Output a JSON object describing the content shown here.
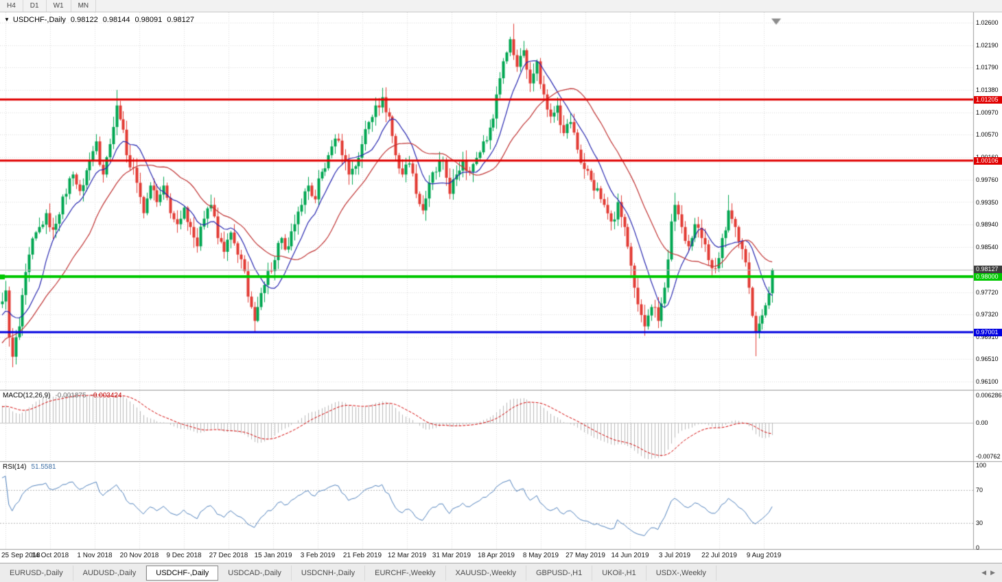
{
  "toolbar": {
    "timeframes": [
      "H4",
      "D1",
      "W1",
      "MN"
    ]
  },
  "chart_data": {
    "type": "candlestick",
    "symbol": "USDCHF-",
    "period": "Daily",
    "title": {
      "dropdown_icon": "▼",
      "symbol": "USDCHF-,Daily",
      "open": "0.98122",
      "high": "0.98144",
      "low": "0.98091",
      "close": "0.98127"
    },
    "price_axis": {
      "min": 0.961,
      "max": 1.026,
      "labels": [
        "1.02600",
        "1.02190",
        "1.01790",
        "1.01380",
        "1.00970",
        "1.00570",
        "1.00160",
        "0.99760",
        "0.99350",
        "0.98940",
        "0.98540",
        "0.98130",
        "0.97720",
        "0.97320",
        "0.96910",
        "0.96510",
        "0.96100"
      ]
    },
    "date_axis": [
      "25 Sep 2018",
      "14 Oct 2018",
      "1 Nov 2018",
      "20 Nov 2018",
      "9 Dec 2018",
      "27 Dec 2018",
      "15 Jan 2019",
      "3 Feb 2019",
      "21 Feb 2019",
      "12 Mar 2019",
      "31 Mar 2019",
      "18 Apr 2019",
      "8 May 2019",
      "27 May 2019",
      "14 Jun 2019",
      "3 Jul 2019",
      "22 Jul 2019",
      "9 Aug 2019"
    ],
    "bar_count": 230,
    "close_anchors": [
      [
        0,
        0.9755
      ],
      [
        1,
        0.9775
      ],
      [
        2,
        0.969
      ],
      [
        3,
        0.9655
      ],
      [
        5,
        0.971
      ],
      [
        8,
        0.984
      ],
      [
        11,
        0.989
      ],
      [
        13,
        0.9915
      ],
      [
        15,
        0.9885
      ],
      [
        18,
        0.9945
      ],
      [
        21,
        0.9985
      ],
      [
        23,
        0.9955
      ],
      [
        26,
        1.001
      ],
      [
        28,
        1.0045
      ],
      [
        30,
        0.9985
      ],
      [
        32,
        1.004
      ],
      [
        34,
        1.011
      ],
      [
        35,
        1.0085
      ],
      [
        37,
        1.002
      ],
      [
        40,
        0.997
      ],
      [
        42,
        0.9915
      ],
      [
        44,
        0.9965
      ],
      [
        46,
        0.9935
      ],
      [
        48,
        0.9965
      ],
      [
        50,
        0.9915
      ],
      [
        52,
        0.9895
      ],
      [
        54,
        0.9925
      ],
      [
        56,
        0.989
      ],
      [
        58,
        0.9855
      ],
      [
        60,
        0.9905
      ],
      [
        62,
        0.993
      ],
      [
        64,
        0.987
      ],
      [
        66,
        0.9845
      ],
      [
        68,
        0.988
      ],
      [
        70,
        0.984
      ],
      [
        72,
        0.981
      ],
      [
        74,
        0.9745
      ],
      [
        75,
        0.972
      ],
      [
        76,
        0.9745
      ],
      [
        78,
        0.9785
      ],
      [
        81,
        0.983
      ],
      [
        83,
        0.987
      ],
      [
        85,
        0.9855
      ],
      [
        87,
        0.9895
      ],
      [
        89,
        0.993
      ],
      [
        91,
        0.9965
      ],
      [
        93,
        0.994
      ],
      [
        95,
        0.999
      ],
      [
        97,
        1.002
      ],
      [
        99,
        1.005
      ],
      [
        101,
        1.002
      ],
      [
        103,
        0.9985
      ],
      [
        105,
        1.0
      ],
      [
        107,
        1.004
      ],
      [
        109,
        1.008
      ],
      [
        111,
        1.011
      ],
      [
        113,
        1.0125
      ],
      [
        115,
        1.009
      ],
      [
        117,
        1.002
      ],
      [
        119,
        0.9985
      ],
      [
        121,
        1.0005
      ],
      [
        123,
        0.995
      ],
      [
        125,
        0.992
      ],
      [
        127,
        0.997
      ],
      [
        129,
        0.999
      ],
      [
        131,
        1.001
      ],
      [
        133,
        0.995
      ],
      [
        135,
        0.9985
      ],
      [
        137,
        1.001
      ],
      [
        139,
        0.999
      ],
      [
        141,
        1.0015
      ],
      [
        143,
        1.0045
      ],
      [
        145,
        1.007
      ],
      [
        147,
        1.013
      ],
      [
        149,
        1.019
      ],
      [
        151,
        1.023
      ],
      [
        153,
        1.018
      ],
      [
        155,
        1.021
      ],
      [
        157,
        1.015
      ],
      [
        159,
        1.019
      ],
      [
        161,
        1.013
      ],
      [
        163,
        1.009
      ],
      [
        165,
        1.011
      ],
      [
        167,
        1.006
      ],
      [
        169,
        1.008
      ],
      [
        171,
        1.003
      ],
      [
        173,
        0.9995
      ],
      [
        175,
        0.9975
      ],
      [
        177,
        0.996
      ],
      [
        179,
        0.993
      ],
      [
        181,
        0.99
      ],
      [
        183,
        0.9935
      ],
      [
        185,
        0.989
      ],
      [
        187,
        0.982
      ],
      [
        189,
        0.975
      ],
      [
        191,
        0.971
      ],
      [
        193,
        0.9745
      ],
      [
        195,
        0.972
      ],
      [
        197,
        0.978
      ],
      [
        199,
        0.99
      ],
      [
        200,
        0.993
      ],
      [
        202,
        0.989
      ],
      [
        204,
        0.9855
      ],
      [
        206,
        0.9895
      ],
      [
        208,
        0.987
      ],
      [
        210,
        0.983
      ],
      [
        212,
        0.9815
      ],
      [
        214,
        0.987
      ],
      [
        216,
        0.992
      ],
      [
        218,
        0.989
      ],
      [
        220,
        0.985
      ],
      [
        222,
        0.978
      ],
      [
        224,
        0.97
      ],
      [
        226,
        0.973
      ],
      [
        228,
        0.977
      ],
      [
        229,
        0.98127
      ]
    ],
    "wick_overrides": {
      "3": {
        "low": 0.9636
      },
      "34": {
        "high": 1.0138
      },
      "75": {
        "low": 0.97
      },
      "113": {
        "high": 1.0142
      },
      "152": {
        "high": 1.0258
      },
      "191": {
        "low": 0.9693
      },
      "200": {
        "high": 0.9952
      },
      "216": {
        "high": 0.9948
      },
      "224": {
        "low": 0.9656
      }
    },
    "hlines": [
      {
        "price": 1.01205,
        "label": "1.01205",
        "color": "#e00000",
        "width": 3
      },
      {
        "price": 1.00106,
        "label": "1.00106",
        "color": "#e00000",
        "width": 3
      },
      {
        "price": 0.98,
        "label": "0.98000",
        "color": "#00c800",
        "width": 4,
        "handle": true
      },
      {
        "price": 0.97001,
        "label": "0.97001",
        "color": "#0000e0",
        "width": 3
      }
    ],
    "current_price": {
      "price": 0.98127,
      "label": "0.98127",
      "line_color": "#b4b4b4",
      "tag_color": "#3c3c3c"
    },
    "ma_overlays": [
      {
        "period": 10,
        "color": "#2626b0"
      },
      {
        "period": 25,
        "color": "#c03232"
      }
    ],
    "indicators": {
      "macd": {
        "name": "MACD(12,26,9)",
        "value_main": "-0.001875",
        "value_signal": "-0.003424",
        "axis_labels": [
          "0.006286",
          "0.00",
          "-0.00762"
        ],
        "axis_values": [
          0.006286,
          0,
          -0.00762
        ],
        "fast": 12,
        "slow": 26,
        "signal": 9
      },
      "rsi": {
        "name": "RSI(14)",
        "value": "51.5581",
        "axis_labels": [
          "100",
          "70",
          "30",
          "0"
        ],
        "axis_values": [
          100,
          70,
          30,
          0
        ],
        "levels": [
          70,
          30
        ],
        "period": 14
      }
    },
    "colors": {
      "up": "#00a651",
      "down": "#e23b34",
      "macd_hist": "#b9b9b9",
      "macd_signal": "#d40000",
      "rsi_line": "#4f81bd",
      "grid": "#dadada"
    }
  },
  "tabbar": {
    "tabs": [
      "EURUSD-,Daily",
      "AUDUSD-,Daily",
      "USDCHF-,Daily",
      "USDCAD-,Daily",
      "USDCNH-,Daily",
      "EURCHF-,Weekly",
      "XAUUSD-,Weekly",
      "GBPUSD-,H1",
      "UKOil-,H1",
      "USDX-,Weekly"
    ],
    "active_index": 2,
    "scroll_icons": {
      "left": "◀",
      "right": "▶"
    }
  }
}
